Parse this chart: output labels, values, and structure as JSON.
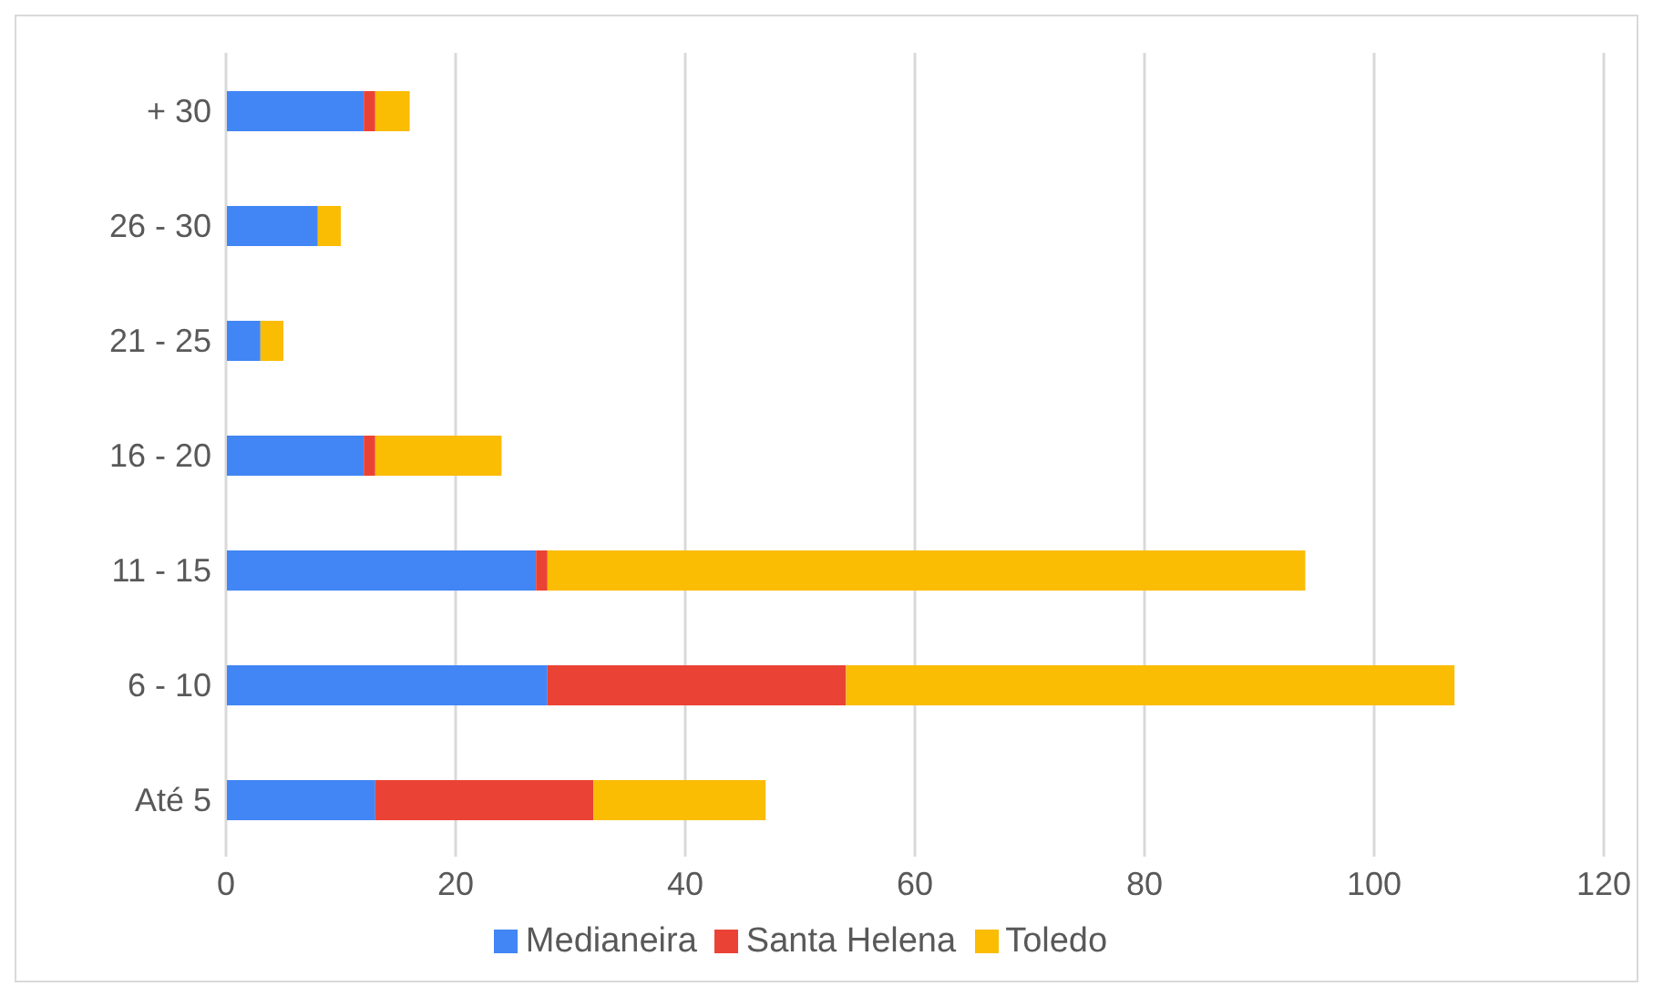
{
  "chart_data": {
    "type": "bar",
    "orientation": "horizontal",
    "stacked": true,
    "categories": [
      "+ 30",
      "26 - 30",
      "21 - 25",
      "16 - 20",
      "11 - 15",
      "6 - 10",
      "Até 5"
    ],
    "series": [
      {
        "name": "Medianeira",
        "color": "#4285f4",
        "values": [
          12,
          8,
          3,
          12,
          27,
          28,
          13
        ]
      },
      {
        "name": "Santa Helena",
        "color": "#ea4335",
        "values": [
          1,
          0,
          0,
          1,
          1,
          26,
          19
        ]
      },
      {
        "name": "Toledo",
        "color": "#fbbc04",
        "values": [
          3,
          2,
          2,
          11,
          66,
          53,
          15
        ]
      }
    ],
    "xlim": [
      0,
      120
    ],
    "xticks": [
      0,
      20,
      40,
      60,
      80,
      100,
      120
    ],
    "grid": "x",
    "legend": "bottom"
  }
}
